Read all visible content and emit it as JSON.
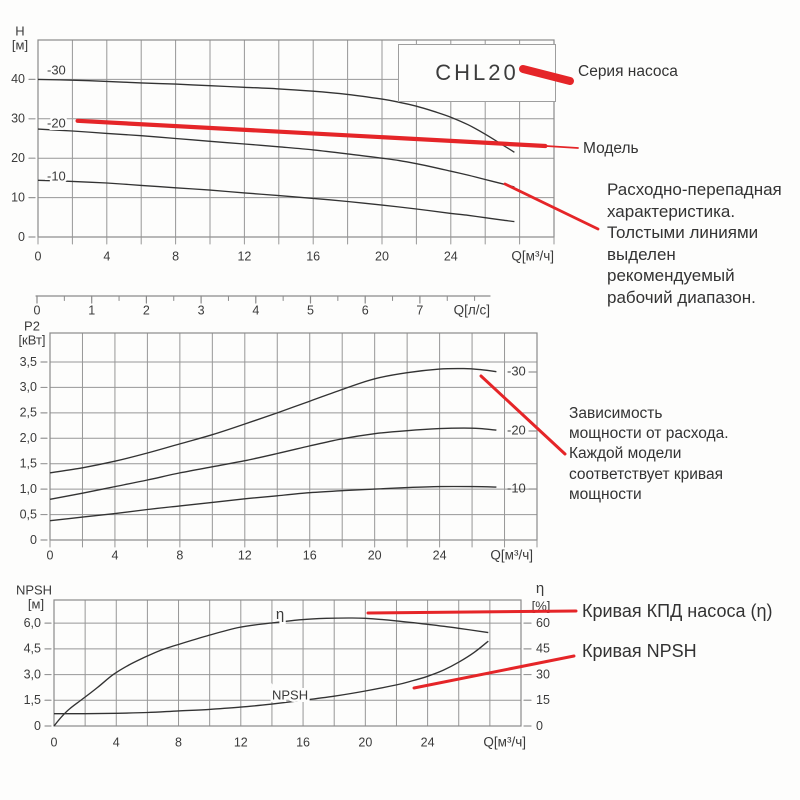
{
  "header": {
    "pump_series": "CHL20"
  },
  "annotations": {
    "series_label": "Серия насоса",
    "model_label": "Модель",
    "hq_note_lines": [
      "Расходно-перепадная",
      "характеристика.",
      "Толстыми линиями",
      "выделен",
      "рекомендуемый",
      "рабочий диапазон."
    ],
    "power_note_lines": [
      "Зависимость",
      "мощности от расхода.",
      "Каждой модели",
      "соответствует кривая",
      "мощности"
    ],
    "efficiency_label": "Кривая КПД насоса (η)",
    "npsh_label": "Кривая NPSH"
  },
  "colors": {
    "accent_red": "#e52528",
    "grid": "#979797",
    "border": "#8a8a8a",
    "curve": "#333333",
    "text": "#3b3b3b"
  },
  "chart_data": [
    {
      "type": "line",
      "id": "head-flow",
      "x_axis": {
        "title": "Q[м³/ч]",
        "range": [
          0,
          30
        ],
        "grid_step": 2,
        "ticks": [
          0,
          4,
          8,
          12,
          16,
          20,
          24
        ],
        "tick_labels": [
          "0",
          "4",
          "8",
          "12",
          "16",
          "20",
          "24"
        ]
      },
      "y_axis": {
        "title_lines": [
          "H",
          "[м]"
        ],
        "range": [
          0,
          50
        ],
        "grid_step": 10,
        "ticks": [
          0,
          10,
          20,
          30,
          40
        ],
        "tick_labels": [
          "0",
          "10",
          "20",
          "30",
          "40"
        ]
      },
      "secondary_x_axis": {
        "title": "Q[л/с]",
        "ticks": [
          0,
          1,
          2,
          3,
          4,
          5,
          6,
          7
        ],
        "tick_labels": [
          "0",
          "1",
          "2",
          "3",
          "4",
          "5",
          "6",
          "7"
        ],
        "minor_step": 0.5,
        "max": 8
      },
      "series": [
        {
          "name": "-30",
          "points": [
            [
              0,
              40
            ],
            [
              2,
              39.8
            ],
            [
              4,
              39.5
            ],
            [
              6,
              39.1
            ],
            [
              8,
              38.8
            ],
            [
              10,
              38.4
            ],
            [
              12,
              38.0
            ],
            [
              14,
              37.6
            ],
            [
              16,
              37.0
            ],
            [
              18,
              36.2
            ],
            [
              20,
              35.0
            ],
            [
              21,
              34.2
            ],
            [
              22,
              33.2
            ],
            [
              23,
              31.9
            ],
            [
              24,
              30.4
            ],
            [
              25,
              28.5
            ],
            [
              26,
              26.1
            ],
            [
              27,
              23.4
            ],
            [
              27.7,
              21.5
            ]
          ]
        },
        {
          "name": "-20",
          "points": [
            [
              0,
              27.4
            ],
            [
              2,
              26.9
            ],
            [
              4,
              26.3
            ],
            [
              6,
              25.7
            ],
            [
              8,
              25.0
            ],
            [
              10,
              24.3
            ],
            [
              12,
              23.6
            ],
            [
              14,
              22.9
            ],
            [
              16,
              22.1
            ],
            [
              18,
              21.1
            ],
            [
              20,
              20.0
            ],
            [
              21,
              19.4
            ],
            [
              22,
              18.6
            ],
            [
              23,
              17.7
            ],
            [
              24,
              16.7
            ],
            [
              25,
              15.7
            ],
            [
              26,
              14.6
            ],
            [
              27,
              13.5
            ],
            [
              27.7,
              12.7
            ]
          ]
        },
        {
          "name": "-10",
          "points": [
            [
              0,
              14.4
            ],
            [
              2,
              14.1
            ],
            [
              4,
              13.7
            ],
            [
              6,
              13.1
            ],
            [
              8,
              12.5
            ],
            [
              10,
              11.9
            ],
            [
              12,
              11.2
            ],
            [
              14,
              10.5
            ],
            [
              16,
              9.8
            ],
            [
              18,
              9.0
            ],
            [
              20,
              8.1
            ],
            [
              22,
              7.1
            ],
            [
              24,
              6.0
            ],
            [
              25,
              5.5
            ],
            [
              26,
              4.9
            ],
            [
              27,
              4.3
            ],
            [
              27.7,
              3.9
            ]
          ]
        }
      ],
      "highlight_line": {
        "meaning": "рекомендуемый рабочий диапазон (модель -20)",
        "points": [
          [
            2.3,
            29.5
          ],
          [
            29.5,
            23.1
          ]
        ]
      }
    },
    {
      "type": "line",
      "id": "power-flow",
      "x_axis": {
        "title": "Q[м³/ч]",
        "range": [
          0,
          30
        ],
        "grid_step": 2,
        "ticks": [
          0,
          4,
          8,
          12,
          16,
          20,
          24
        ],
        "tick_labels": [
          "0",
          "4",
          "8",
          "12",
          "16",
          "20",
          "24"
        ]
      },
      "y_axis": {
        "title_lines": [
          "P2",
          "[кВт]"
        ],
        "range": [
          0,
          4.07
        ],
        "grid_step": 0.5,
        "ticks": [
          0,
          0.5,
          1,
          1.5,
          2,
          2.5,
          3,
          3.5
        ],
        "tick_labels": [
          "0",
          "0,5",
          "1,0",
          "1,5",
          "2,0",
          "2,5",
          "3,0",
          "3,5"
        ]
      },
      "series": [
        {
          "name": "-30",
          "points": [
            [
              0,
              1.32
            ],
            [
              2,
              1.42
            ],
            [
              4,
              1.55
            ],
            [
              6,
              1.71
            ],
            [
              8,
              1.89
            ],
            [
              10,
              2.07
            ],
            [
              12,
              2.28
            ],
            [
              14,
              2.5
            ],
            [
              16,
              2.73
            ],
            [
              18,
              2.96
            ],
            [
              20,
              3.17
            ],
            [
              22,
              3.29
            ],
            [
              24,
              3.36
            ],
            [
              25.5,
              3.37
            ],
            [
              26.5,
              3.35
            ],
            [
              27.5,
              3.31
            ]
          ]
        },
        {
          "name": "-20",
          "points": [
            [
              0,
              0.8
            ],
            [
              2,
              0.92
            ],
            [
              4,
              1.05
            ],
            [
              6,
              1.18
            ],
            [
              8,
              1.32
            ],
            [
              10,
              1.44
            ],
            [
              12,
              1.56
            ],
            [
              14,
              1.7
            ],
            [
              16,
              1.85
            ],
            [
              18,
              1.99
            ],
            [
              20,
              2.09
            ],
            [
              22,
              2.15
            ],
            [
              24,
              2.19
            ],
            [
              25.5,
              2.2
            ],
            [
              26.5,
              2.19
            ],
            [
              27.5,
              2.16
            ]
          ]
        },
        {
          "name": "-10",
          "points": [
            [
              0,
              0.38
            ],
            [
              2,
              0.45
            ],
            [
              4,
              0.52
            ],
            [
              6,
              0.6
            ],
            [
              8,
              0.67
            ],
            [
              10,
              0.74
            ],
            [
              12,
              0.81
            ],
            [
              14,
              0.87
            ],
            [
              16,
              0.93
            ],
            [
              18,
              0.97
            ],
            [
              20,
              1.0
            ],
            [
              22,
              1.03
            ],
            [
              24,
              1.05
            ],
            [
              26,
              1.05
            ],
            [
              27.5,
              1.04
            ]
          ]
        }
      ]
    },
    {
      "type": "line",
      "id": "npsh-efficiency-flow",
      "x_axis": {
        "title": "Q[м³/ч]",
        "range": [
          0,
          30
        ],
        "grid_step": 2,
        "ticks": [
          0,
          4,
          8,
          12,
          16,
          20,
          24
        ],
        "tick_labels": [
          "0",
          "4",
          "8",
          "12",
          "16",
          "20",
          "24"
        ]
      },
      "y_axis": {
        "title_lines": [
          "NPSH",
          "[м]"
        ],
        "range": [
          0,
          7.35
        ],
        "grid_step": 1.5,
        "ticks": [
          0,
          1.5,
          3,
          4.5,
          6
        ],
        "tick_labels": [
          "0",
          "1,5",
          "3,0",
          "4,5",
          "6,0"
        ]
      },
      "y_axis_right": {
        "title_lines": [
          "η",
          "[%]"
        ],
        "range": [
          0,
          73.5
        ],
        "grid_step": 15,
        "ticks": [
          0,
          15,
          30,
          45,
          60
        ],
        "tick_labels": [
          "0",
          "15",
          "30",
          "45",
          "60"
        ]
      },
      "series": [
        {
          "name": "η",
          "axis": "right",
          "points": [
            [
              0,
              0
            ],
            [
              0.5,
              5.5
            ],
            [
              1,
              10
            ],
            [
              1.8,
              15.5
            ],
            [
              2.8,
              22.5
            ],
            [
              3.8,
              30
            ],
            [
              4.8,
              35.5
            ],
            [
              5.8,
              40
            ],
            [
              6.8,
              44
            ],
            [
              7.8,
              47
            ],
            [
              9.8,
              52.5
            ],
            [
              11.9,
              57.5
            ],
            [
              13.9,
              60
            ],
            [
              15.9,
              62
            ],
            [
              17.5,
              62.8
            ],
            [
              18.9,
              63
            ],
            [
              20,
              62.8
            ],
            [
              22,
              61.3
            ],
            [
              24,
              59.3
            ],
            [
              26,
              57
            ],
            [
              27.9,
              54.5
            ]
          ]
        },
        {
          "name": "NPSH",
          "axis": "left",
          "points": [
            [
              0,
              0.72
            ],
            [
              2,
              0.72
            ],
            [
              4,
              0.74
            ],
            [
              6,
              0.79
            ],
            [
              8,
              0.88
            ],
            [
              10,
              0.97
            ],
            [
              12,
              1.1
            ],
            [
              14,
              1.28
            ],
            [
              16,
              1.5
            ],
            [
              18,
              1.74
            ],
            [
              20,
              2.04
            ],
            [
              22,
              2.4
            ],
            [
              23,
              2.63
            ],
            [
              24,
              2.9
            ],
            [
              25,
              3.25
            ],
            [
              26,
              3.72
            ],
            [
              27,
              4.3
            ],
            [
              27.9,
              4.95
            ]
          ]
        }
      ]
    }
  ]
}
